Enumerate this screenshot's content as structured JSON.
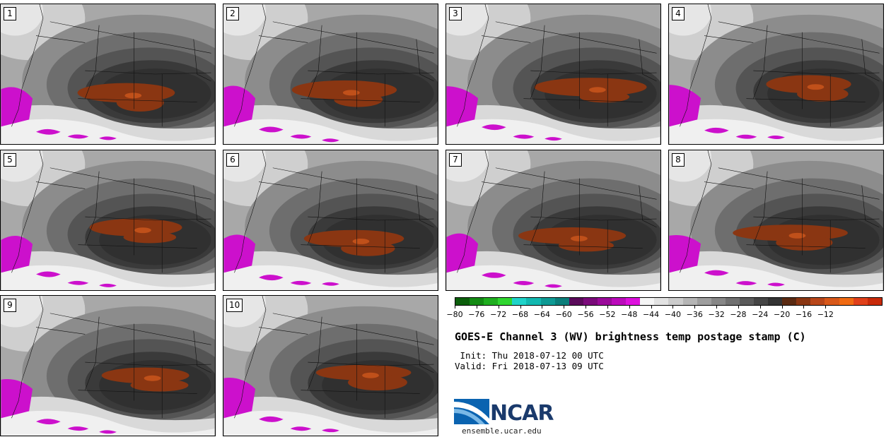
{
  "panels": [
    {
      "number": "1"
    },
    {
      "number": "2"
    },
    {
      "number": "3"
    },
    {
      "number": "4"
    },
    {
      "number": "5"
    },
    {
      "number": "6"
    },
    {
      "number": "7"
    },
    {
      "number": "8"
    },
    {
      "number": "9"
    },
    {
      "number": "10"
    }
  ],
  "colorbar": {
    "colors": [
      "#0b5e0b",
      "#138a13",
      "#1fae1f",
      "#2fd62f",
      "#1fd3c9",
      "#12b8b0",
      "#0e9a94",
      "#0b7e7a",
      "#5a0a5a",
      "#7a0a7a",
      "#9a0a9a",
      "#bb0abb",
      "#dd10dd",
      "#f5f5f5",
      "#e2e2e2",
      "#cccccc",
      "#b5b5b5",
      "#9e9e9e",
      "#878787",
      "#707070",
      "#5a5a5a",
      "#454545",
      "#333333",
      "#5a2a12",
      "#8a3612",
      "#b8461a",
      "#d8581a",
      "#f06a12",
      "#e0401a",
      "#c82a0a"
    ],
    "tick_labels": [
      "−80",
      "−76",
      "−72",
      "−68",
      "−64",
      "−60",
      "−56",
      "−52",
      "−48",
      "−44",
      "−40",
      "−36",
      "−32",
      "−28",
      "−24",
      "−20",
      "−16",
      "−12"
    ]
  },
  "title": "GOES-E Channel 3 (WV) brightness temp postage stamp (C)",
  "init": " Init: Thu 2018-07-12 00 UTC",
  "valid": "Valid: Fri 2018-07-13 09 UTC",
  "logo": {
    "text": "NCAR",
    "url": "ensemble.ucar.edu"
  }
}
